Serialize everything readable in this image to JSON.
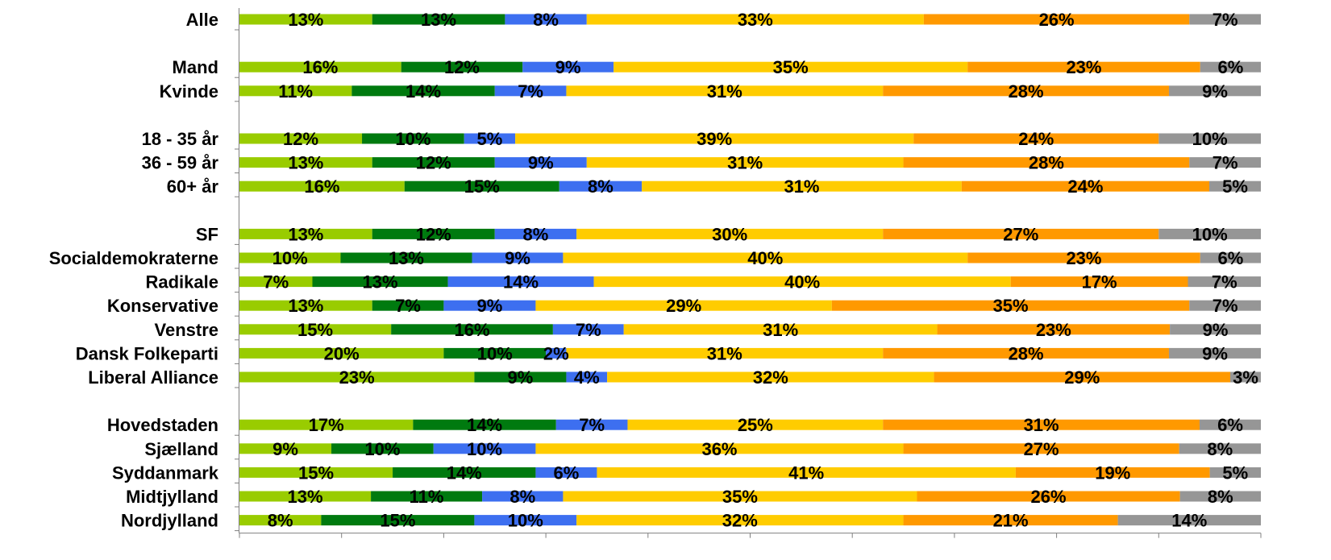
{
  "chart_data": {
    "type": "bar",
    "orientation": "horizontal",
    "stacked": "percent",
    "legend": "none",
    "grid": false,
    "colors": [
      "#99cc00",
      "#007a0f",
      "#3d6ff0",
      "#ffcc00",
      "#ff9900",
      "#969696"
    ],
    "groups": [
      {
        "rows": [
          {
            "label": "Alle",
            "values": [
              13,
              13,
              8,
              33,
              26,
              7
            ],
            "value_labels": [
              "13%",
              "13%",
              "8%",
              "33%",
              "26%",
              "7%"
            ]
          }
        ]
      },
      {
        "rows": [
          {
            "label": "Mand",
            "values": [
              16,
              12,
              9,
              35,
              23,
              6
            ],
            "value_labels": [
              "16%",
              "12%",
              "9%",
              "35%",
              "23%",
              "6%"
            ]
          },
          {
            "label": "Kvinde",
            "values": [
              11,
              14,
              7,
              31,
              28,
              9
            ],
            "value_labels": [
              "11%",
              "14%",
              "7%",
              "31%",
              "28%",
              "9%"
            ]
          }
        ]
      },
      {
        "rows": [
          {
            "label": "18 - 35 år",
            "values": [
              12,
              10,
              5,
              39,
              24,
              10
            ],
            "value_labels": [
              "12%",
              "10%",
              "5%",
              "39%",
              "24%",
              "10%"
            ]
          },
          {
            "label": "36 - 59 år",
            "values": [
              13,
              12,
              9,
              31,
              28,
              7
            ],
            "value_labels": [
              "13%",
              "12%",
              "9%",
              "31%",
              "28%",
              "7%"
            ]
          },
          {
            "label": "60+ år",
            "values": [
              16,
              15,
              8,
              31,
              24,
              5
            ],
            "value_labels": [
              "16%",
              "15%",
              "8%",
              "31%",
              "24%",
              "5%"
            ]
          }
        ]
      },
      {
        "rows": [
          {
            "label": "SF",
            "values": [
              13,
              12,
              8,
              30,
              27,
              10
            ],
            "value_labels": [
              "13%",
              "12%",
              "8%",
              "30%",
              "27%",
              "10%"
            ]
          },
          {
            "label": "Socialdemokraterne",
            "values": [
              10,
              13,
              9,
              40,
              23,
              6
            ],
            "value_labels": [
              "10%",
              "13%",
              "9%",
              "40%",
              "23%",
              "6%"
            ]
          },
          {
            "label": "Radikale",
            "values": [
              7,
              13,
              14,
              40,
              17,
              7
            ],
            "value_labels": [
              "7%",
              "13%",
              "14%",
              "40%",
              "17%",
              "7%"
            ]
          },
          {
            "label": "Konservative",
            "values": [
              13,
              7,
              9,
              29,
              35,
              7
            ],
            "value_labels": [
              "13%",
              "7%",
              "9%",
              "29%",
              "35%",
              "7%"
            ]
          },
          {
            "label": "Venstre",
            "values": [
              15,
              16,
              7,
              31,
              23,
              9
            ],
            "value_labels": [
              "15%",
              "16%",
              "7%",
              "31%",
              "23%",
              "9%"
            ]
          },
          {
            "label": "Dansk Folkeparti",
            "values": [
              20,
              10,
              2,
              31,
              28,
              9
            ],
            "value_labels": [
              "20%",
              "10%",
              "2%",
              "31%",
              "28%",
              "9%"
            ]
          },
          {
            "label": "Liberal Alliance",
            "values": [
              23,
              9,
              4,
              32,
              29,
              3
            ],
            "value_labels": [
              "23%",
              "9%",
              "4%",
              "32%",
              "29%",
              "3%"
            ]
          }
        ]
      },
      {
        "rows": [
          {
            "label": "Hovedstaden",
            "values": [
              17,
              14,
              7,
              25,
              31,
              6
            ],
            "value_labels": [
              "17%",
              "14%",
              "7%",
              "25%",
              "31%",
              "6%"
            ]
          },
          {
            "label": "Sjælland",
            "values": [
              9,
              10,
              10,
              36,
              27,
              8
            ],
            "value_labels": [
              "9%",
              "10%",
              "10%",
              "36%",
              "27%",
              "8%"
            ]
          },
          {
            "label": "Syddanmark",
            "values": [
              15,
              14,
              6,
              41,
              19,
              5
            ],
            "value_labels": [
              "15%",
              "14%",
              "6%",
              "41%",
              "19%",
              "5%"
            ]
          },
          {
            "label": "Midtjylland",
            "values": [
              13,
              11,
              8,
              35,
              26,
              8
            ],
            "value_labels": [
              "13%",
              "11%",
              "8%",
              "35%",
              "26%",
              "8%"
            ]
          },
          {
            "label": "Nordjylland",
            "values": [
              8,
              15,
              10,
              32,
              21,
              14
            ],
            "value_labels": [
              "8%",
              "15%",
              "10%",
              "32%",
              "21%",
              "14%"
            ]
          }
        ]
      }
    ]
  }
}
